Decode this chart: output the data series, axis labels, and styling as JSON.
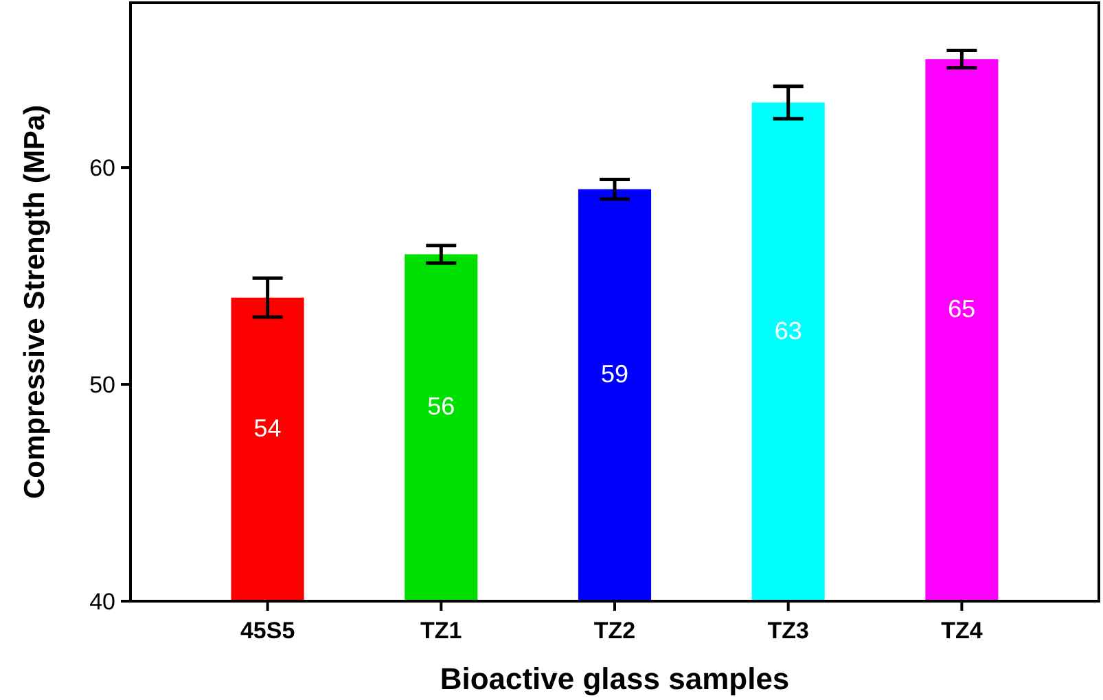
{
  "chart_data": {
    "type": "bar",
    "xlabel": "Bioactive glass samples",
    "ylabel": "Compressive Strength (MPa)",
    "categories": [
      "45S5",
      "TZ1",
      "TZ2",
      "TZ3",
      "TZ4"
    ],
    "values": [
      54,
      56,
      59,
      63,
      65
    ],
    "colors": [
      "#ff0000",
      "#00e000",
      "#0000ff",
      "#00ffff",
      "#ff00ff"
    ],
    "errors": [
      0.9,
      0.4,
      0.45,
      0.75,
      0.4
    ],
    "ylim": [
      40,
      67.6
    ],
    "yticks": [
      40,
      50,
      60
    ],
    "data_labels": true,
    "grid": false
  }
}
